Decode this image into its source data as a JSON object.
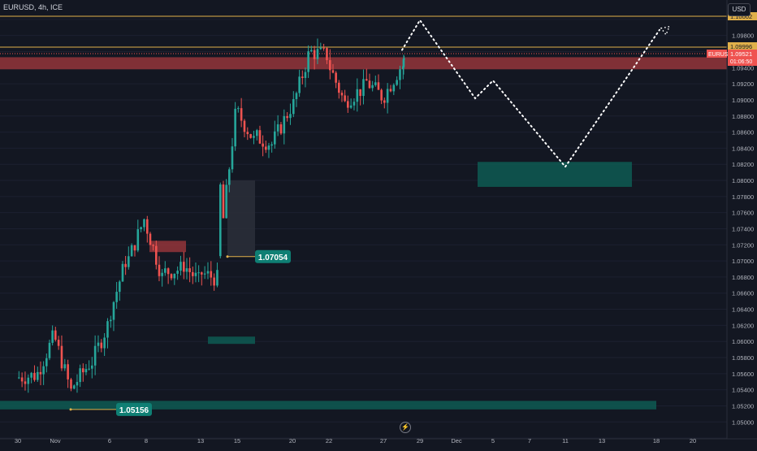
{
  "header": {
    "symbol": "EURUSD",
    "interval": "4h",
    "exchange": "ICE",
    "currency_button": "USD",
    "title": "EURUSD, 4h, ICE"
  },
  "colors": {
    "bg": "#131722",
    "up": "#26a69a",
    "down": "#ef5350",
    "zone_green": "#0e5a52",
    "zone_red": "#a63a3e",
    "hline": "#e0b04a",
    "path": "#ffffff"
  },
  "chart_data": {
    "type": "candlestick",
    "ylim": [
      1.047,
      1.1015
    ],
    "y_ticks": [
      "1.04800",
      "1.05000",
      "1.05200",
      "1.05400",
      "1.05600",
      "1.05800",
      "1.06000",
      "1.06200",
      "1.06400",
      "1.06600",
      "1.06800",
      "1.07000",
      "1.07200",
      "1.07400",
      "1.07600",
      "1.07800",
      "1.08000",
      "1.08200",
      "1.08400",
      "1.08600",
      "1.08800",
      "1.09000",
      "1.09200",
      "1.09400",
      "1.09600",
      "1.09800",
      "1.10000"
    ],
    "x_ticks": [
      "30",
      "Nov",
      "6",
      "8",
      "13",
      "15",
      "20",
      "22",
      "27",
      "29",
      "Dec",
      "5",
      "7",
      "11",
      "13",
      "18",
      "20"
    ],
    "price_labels": {
      "upper_line": "1.10002",
      "lower_line": "1.09996",
      "current_symbol": "EURUSD",
      "current_price": "1.09521",
      "countdown": "01:06:50"
    },
    "annotations": [
      {
        "label": "1.07054",
        "price": 1.07054
      },
      {
        "label": "1.05156",
        "price": 1.05156
      }
    ],
    "horizontal_lines": [
      1.10002,
      1.09996
    ],
    "zones": [
      {
        "kind": "supply",
        "from_price": 1.0953,
        "to_price": 1.0938,
        "extends": "full width"
      },
      {
        "kind": "demand",
        "from_price": 1.0823,
        "to_price": 1.0792,
        "extends": "Dec 4 to Dec 17"
      },
      {
        "kind": "demand",
        "from_price": 1.05262,
        "to_price": 1.05156,
        "extends": "Nov 1 to Dec 17"
      },
      {
        "kind": "demand",
        "from_price": 1.0606,
        "to_price": 1.0597,
        "extends": "Nov 11 to Nov 15"
      },
      {
        "kind": "supply",
        "from_price": 1.0725,
        "to_price": 1.0711,
        "extends": "Nov 8 to Nov 12"
      },
      {
        "kind": "gap",
        "from_price": 1.08,
        "to_price": 1.07054,
        "extends": "Nov 14 to Nov 15"
      }
    ],
    "projection_path": [
      {
        "date": "Nov 29",
        "price": 1.0999
      },
      {
        "date": "Dec 3",
        "price": 1.0902
      },
      {
        "date": "Dec 5",
        "price": 1.0924
      },
      {
        "date": "Dec 11",
        "price": 1.0817
      },
      {
        "date": "Dec 18",
        "price": 1.0987
      }
    ],
    "ohlc_keyframes": [
      [
        "Oct 30",
        1.0558
      ],
      [
        "Oct 31",
        1.0603
      ],
      [
        "Nov 1",
        1.0538
      ],
      [
        "Nov 2",
        1.0572
      ],
      [
        "Nov 3",
        1.062
      ],
      [
        "Nov 6",
        1.07
      ],
      [
        "Nov 7",
        1.0752
      ],
      [
        "Nov 8",
        1.068
      ],
      [
        "Nov 9",
        1.069
      ],
      [
        "Nov 10",
        1.0675
      ],
      [
        "Nov 13",
        1.0678
      ],
      [
        "Nov 14",
        1.088
      ],
      [
        "Nov 15",
        1.085
      ],
      [
        "Nov 16",
        1.0845
      ],
      [
        "Nov 17",
        1.089
      ],
      [
        "Nov 20",
        1.0955
      ],
      [
        "Nov 21",
        1.0955
      ],
      [
        "Nov 22",
        1.0895
      ],
      [
        "Nov 23",
        1.0915
      ],
      [
        "Nov 24",
        1.0905
      ],
      [
        "Nov 27",
        1.094
      ],
      [
        "Nov 28",
        1.0952
      ]
    ]
  }
}
